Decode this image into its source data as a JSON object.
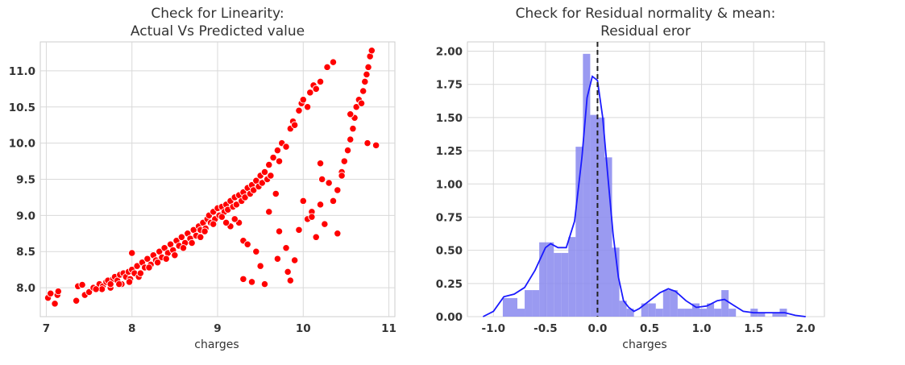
{
  "chart_data": [
    {
      "type": "scatter",
      "title_line1": "Check for Linearity:",
      "title_line2": "Actual Vs Predicted value",
      "xlabel": "charges",
      "ylabel": "",
      "xlim": [
        6.93,
        11.07
      ],
      "ylim": [
        7.6,
        11.4
      ],
      "xticks": [
        7,
        8,
        9,
        10,
        11
      ],
      "yticks": [
        8.0,
        8.5,
        9.0,
        9.5,
        10.0,
        10.5,
        11.0
      ],
      "xtick_labels": [
        "7",
        "8",
        "9",
        "10",
        "11"
      ],
      "ytick_labels": [
        "8.0",
        "8.5",
        "9.0",
        "9.5",
        "10.0",
        "10.5",
        "11.0"
      ],
      "marker_color": "#ff0000",
      "grid": true,
      "points": [
        [
          7.02,
          7.86
        ],
        [
          7.05,
          7.92
        ],
        [
          7.1,
          7.78
        ],
        [
          7.13,
          7.9
        ],
        [
          7.14,
          7.95
        ],
        [
          7.35,
          7.82
        ],
        [
          7.37,
          8.02
        ],
        [
          7.42,
          8.04
        ],
        [
          7.45,
          7.9
        ],
        [
          7.5,
          7.94
        ],
        [
          7.55,
          8.0
        ],
        [
          7.6,
          7.99
        ],
        [
          7.62,
          8.05
        ],
        [
          7.66,
          8.02
        ],
        [
          7.7,
          8.08
        ],
        [
          7.72,
          8.1
        ],
        [
          7.75,
          8.0
        ],
        [
          7.78,
          8.12
        ],
        [
          7.8,
          8.15
        ],
        [
          7.83,
          8.1
        ],
        [
          7.86,
          8.18
        ],
        [
          7.88,
          8.05
        ],
        [
          7.9,
          8.2
        ],
        [
          7.93,
          8.15
        ],
        [
          7.96,
          8.22
        ],
        [
          7.98,
          8.12
        ],
        [
          8.0,
          8.25
        ],
        [
          8.0,
          8.48
        ],
        [
          8.03,
          8.2
        ],
        [
          8.06,
          8.3
        ],
        [
          8.08,
          8.15
        ],
        [
          8.12,
          8.35
        ],
        [
          8.15,
          8.28
        ],
        [
          8.18,
          8.4
        ],
        [
          8.22,
          8.32
        ],
        [
          8.25,
          8.45
        ],
        [
          8.28,
          8.38
        ],
        [
          8.32,
          8.5
        ],
        [
          8.35,
          8.42
        ],
        [
          8.38,
          8.55
        ],
        [
          8.42,
          8.48
        ],
        [
          8.45,
          8.6
        ],
        [
          8.48,
          8.52
        ],
        [
          8.52,
          8.65
        ],
        [
          8.55,
          8.58
        ],
        [
          8.58,
          8.7
        ],
        [
          8.62,
          8.62
        ],
        [
          8.65,
          8.75
        ],
        [
          8.68,
          8.68
        ],
        [
          8.72,
          8.8
        ],
        [
          8.75,
          8.72
        ],
        [
          8.78,
          8.85
        ],
        [
          8.8,
          8.8
        ],
        [
          8.83,
          8.9
        ],
        [
          8.86,
          8.82
        ],
        [
          8.88,
          8.95
        ],
        [
          8.9,
          9.0
        ],
        [
          8.92,
          8.9
        ],
        [
          8.95,
          9.05
        ],
        [
          8.97,
          8.95
        ],
        [
          9.0,
          9.1
        ],
        [
          9.02,
          9.0
        ],
        [
          9.05,
          9.12
        ],
        [
          9.08,
          9.05
        ],
        [
          9.1,
          9.15
        ],
        [
          9.12,
          9.08
        ],
        [
          9.15,
          9.2
        ],
        [
          9.18,
          9.12
        ],
        [
          9.2,
          9.25
        ],
        [
          9.22,
          9.15
        ],
        [
          9.25,
          9.28
        ],
        [
          9.28,
          9.2
        ],
        [
          9.3,
          9.32
        ],
        [
          9.32,
          9.25
        ],
        [
          9.35,
          9.38
        ],
        [
          9.38,
          9.3
        ],
        [
          9.4,
          9.42
        ],
        [
          9.42,
          9.35
        ],
        [
          9.45,
          9.48
        ],
        [
          9.48,
          9.4
        ],
        [
          9.5,
          9.55
        ],
        [
          9.52,
          9.45
        ],
        [
          9.55,
          9.6
        ],
        [
          9.58,
          9.5
        ],
        [
          9.6,
          9.7
        ],
        [
          9.62,
          9.55
        ],
        [
          9.65,
          9.8
        ],
        [
          9.7,
          9.9
        ],
        [
          9.72,
          9.75
        ],
        [
          9.75,
          10.0
        ],
        [
          9.8,
          9.95
        ],
        [
          9.85,
          10.2
        ],
        [
          9.88,
          10.3
        ],
        [
          9.9,
          10.25
        ],
        [
          9.95,
          10.45
        ],
        [
          9.98,
          10.55
        ],
        [
          10.0,
          10.6
        ],
        [
          10.05,
          10.5
        ],
        [
          10.08,
          10.7
        ],
        [
          10.12,
          10.8
        ],
        [
          10.15,
          10.75
        ],
        [
          10.2,
          10.85
        ],
        [
          10.28,
          11.05
        ],
        [
          10.35,
          11.12
        ],
        [
          9.3,
          8.65
        ],
        [
          9.35,
          8.6
        ],
        [
          9.3,
          8.12
        ],
        [
          9.4,
          8.08
        ],
        [
          9.45,
          8.5
        ],
        [
          9.5,
          8.3
        ],
        [
          9.55,
          8.05
        ],
        [
          9.7,
          8.4
        ],
        [
          9.72,
          8.78
        ],
        [
          9.8,
          8.55
        ],
        [
          9.85,
          8.1
        ],
        [
          9.9,
          8.38
        ],
        [
          9.95,
          8.8
        ],
        [
          9.82,
          8.22
        ],
        [
          9.6,
          9.05
        ],
        [
          9.68,
          9.3
        ],
        [
          10.0,
          9.2
        ],
        [
          10.05,
          8.95
        ],
        [
          10.1,
          9.05
        ],
        [
          10.15,
          8.7
        ],
        [
          10.2,
          9.15
        ],
        [
          10.22,
          9.5
        ],
        [
          10.3,
          9.45
        ],
        [
          10.35,
          9.2
        ],
        [
          10.4,
          9.35
        ],
        [
          10.45,
          9.6
        ],
        [
          10.48,
          9.75
        ],
        [
          10.52,
          9.9
        ],
        [
          10.55,
          10.05
        ],
        [
          10.58,
          10.2
        ],
        [
          10.6,
          10.35
        ],
        [
          10.62,
          10.5
        ],
        [
          10.65,
          10.6
        ],
        [
          10.68,
          10.55
        ],
        [
          10.7,
          10.72
        ],
        [
          10.72,
          10.85
        ],
        [
          10.74,
          10.95
        ],
        [
          10.76,
          11.05
        ],
        [
          10.78,
          11.2
        ],
        [
          10.8,
          11.28
        ],
        [
          10.85,
          9.97
        ],
        [
          10.75,
          10.0
        ],
        [
          10.2,
          9.72
        ],
        [
          10.45,
          9.55
        ],
        [
          10.1,
          8.98
        ],
        [
          10.25,
          8.88
        ],
        [
          10.4,
          8.75
        ],
        [
          10.55,
          10.4
        ],
        [
          9.25,
          8.9
        ],
        [
          9.2,
          8.95
        ],
        [
          9.15,
          8.85
        ],
        [
          9.1,
          8.9
        ],
        [
          9.05,
          8.98
        ],
        [
          8.95,
          8.88
        ],
        [
          8.85,
          8.78
        ],
        [
          8.8,
          8.7
        ],
        [
          8.7,
          8.62
        ],
        [
          8.6,
          8.55
        ],
        [
          8.5,
          8.45
        ],
        [
          8.4,
          8.4
        ],
        [
          8.3,
          8.35
        ],
        [
          8.2,
          8.28
        ],
        [
          8.1,
          8.2
        ],
        [
          7.97,
          8.08
        ],
        [
          7.85,
          8.05
        ],
        [
          7.75,
          8.05
        ],
        [
          7.65,
          7.98
        ],
        [
          7.58,
          7.98
        ]
      ]
    },
    {
      "type": "histogram",
      "title_line1": "Check for Residual normality & mean:",
      "title_line2": "Residual eror",
      "xlabel": "charges",
      "ylabel": "",
      "xlim": [
        -1.25,
        2.18
      ],
      "ylim": [
        0,
        2.07
      ],
      "xticks": [
        -1.0,
        -0.5,
        0.0,
        0.5,
        1.0,
        1.5,
        2.0
      ],
      "yticks": [
        0.0,
        0.25,
        0.5,
        0.75,
        1.0,
        1.25,
        1.5,
        1.75,
        2.0
      ],
      "xtick_labels": [
        "-1.0",
        "-0.5",
        "0.0",
        "0.5",
        "1.0",
        "1.5",
        "2.0"
      ],
      "ytick_labels": [
        "0.00",
        "0.25",
        "0.50",
        "0.75",
        "1.00",
        "1.25",
        "1.50",
        "1.75",
        "2.00"
      ],
      "bar_color": "#8888ee",
      "kde_color": "#1a1aff",
      "mean_line_color": "#222222",
      "mean_line_x": 0.0,
      "grid": true,
      "bins": [
        {
          "x0": -0.91,
          "x1": -0.77,
          "h": 0.14
        },
        {
          "x0": -0.77,
          "x1": -0.7,
          "h": 0.06
        },
        {
          "x0": -0.7,
          "x1": -0.63,
          "h": 0.2
        },
        {
          "x0": -0.63,
          "x1": -0.56,
          "h": 0.2
        },
        {
          "x0": -0.56,
          "x1": -0.49,
          "h": 0.56
        },
        {
          "x0": -0.49,
          "x1": -0.42,
          "h": 0.56
        },
        {
          "x0": -0.42,
          "x1": -0.35,
          "h": 0.48
        },
        {
          "x0": -0.35,
          "x1": -0.28,
          "h": 0.48
        },
        {
          "x0": -0.28,
          "x1": -0.21,
          "h": 0.6
        },
        {
          "x0": -0.21,
          "x1": -0.14,
          "h": 1.28
        },
        {
          "x0": -0.14,
          "x1": -0.07,
          "h": 1.98
        },
        {
          "x0": -0.07,
          "x1": 0.0,
          "h": 1.52
        },
        {
          "x0": 0.0,
          "x1": 0.07,
          "h": 1.5
        },
        {
          "x0": 0.07,
          "x1": 0.14,
          "h": 1.2
        },
        {
          "x0": 0.14,
          "x1": 0.21,
          "h": 0.52
        },
        {
          "x0": 0.21,
          "x1": 0.28,
          "h": 0.12
        },
        {
          "x0": 0.28,
          "x1": 0.35,
          "h": 0.06
        },
        {
          "x0": 0.42,
          "x1": 0.49,
          "h": 0.1
        },
        {
          "x0": 0.49,
          "x1": 0.56,
          "h": 0.1
        },
        {
          "x0": 0.56,
          "x1": 0.63,
          "h": 0.06
        },
        {
          "x0": 0.63,
          "x1": 0.7,
          "h": 0.2
        },
        {
          "x0": 0.7,
          "x1": 0.77,
          "h": 0.2
        },
        {
          "x0": 0.77,
          "x1": 0.84,
          "h": 0.06
        },
        {
          "x0": 0.84,
          "x1": 0.91,
          "h": 0.06
        },
        {
          "x0": 0.91,
          "x1": 0.98,
          "h": 0.1
        },
        {
          "x0": 0.98,
          "x1": 1.05,
          "h": 0.06
        },
        {
          "x0": 1.05,
          "x1": 1.12,
          "h": 0.1
        },
        {
          "x0": 1.12,
          "x1": 1.19,
          "h": 0.06
        },
        {
          "x0": 1.19,
          "x1": 1.26,
          "h": 0.2
        },
        {
          "x0": 1.26,
          "x1": 1.33,
          "h": 0.06
        },
        {
          "x0": 1.47,
          "x1": 1.54,
          "h": 0.06
        },
        {
          "x0": 1.54,
          "x1": 1.61,
          "h": 0.03
        },
        {
          "x0": 1.68,
          "x1": 1.75,
          "h": 0.03
        },
        {
          "x0": 1.75,
          "x1": 1.82,
          "h": 0.06
        }
      ],
      "kde": [
        [
          -1.1,
          0.0
        ],
        [
          -1.0,
          0.04
        ],
        [
          -0.9,
          0.15
        ],
        [
          -0.8,
          0.17
        ],
        [
          -0.7,
          0.22
        ],
        [
          -0.6,
          0.35
        ],
        [
          -0.5,
          0.52
        ],
        [
          -0.45,
          0.55
        ],
        [
          -0.38,
          0.52
        ],
        [
          -0.3,
          0.52
        ],
        [
          -0.22,
          0.72
        ],
        [
          -0.15,
          1.2
        ],
        [
          -0.1,
          1.65
        ],
        [
          -0.05,
          1.81
        ],
        [
          0.0,
          1.78
        ],
        [
          0.05,
          1.5
        ],
        [
          0.1,
          1.05
        ],
        [
          0.15,
          0.62
        ],
        [
          0.2,
          0.3
        ],
        [
          0.25,
          0.12
        ],
        [
          0.3,
          0.07
        ],
        [
          0.35,
          0.04
        ],
        [
          0.4,
          0.06
        ],
        [
          0.5,
          0.12
        ],
        [
          0.6,
          0.18
        ],
        [
          0.68,
          0.21
        ],
        [
          0.75,
          0.19
        ],
        [
          0.85,
          0.12
        ],
        [
          0.95,
          0.07
        ],
        [
          1.05,
          0.08
        ],
        [
          1.15,
          0.12
        ],
        [
          1.22,
          0.13
        ],
        [
          1.3,
          0.09
        ],
        [
          1.4,
          0.04
        ],
        [
          1.5,
          0.03
        ],
        [
          1.6,
          0.03
        ],
        [
          1.7,
          0.03
        ],
        [
          1.8,
          0.03
        ],
        [
          1.9,
          0.01
        ],
        [
          2.0,
          0.0
        ]
      ]
    }
  ]
}
